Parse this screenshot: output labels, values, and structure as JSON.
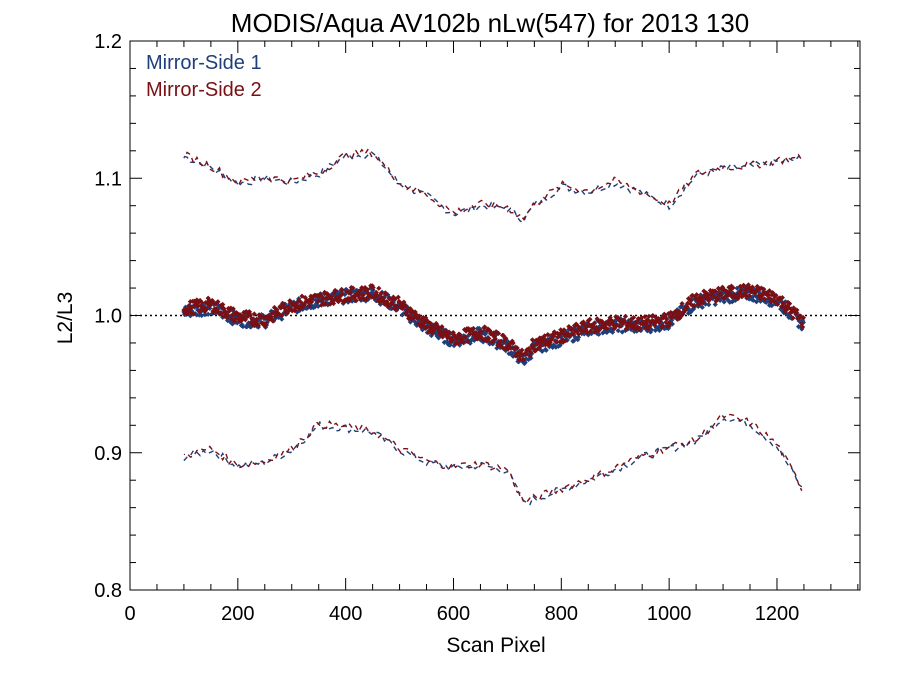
{
  "chart_data": {
    "type": "scatter",
    "title": "MODIS/Aqua AV102b nLw(547) for 2013 130",
    "xlabel": "Scan Pixel",
    "ylabel": "L2/L3",
    "xlim": [
      0,
      1354
    ],
    "ylim": [
      0.8,
      1.2
    ],
    "x_ticks": [
      0,
      200,
      400,
      600,
      800,
      1000,
      1200
    ],
    "x_tick_labels": [
      "0",
      "200",
      "400",
      "600",
      "800",
      "1000",
      "1200"
    ],
    "y_ticks": [
      0.8,
      0.9,
      1.0,
      1.1,
      1.2
    ],
    "y_tick_labels": [
      "0.8",
      "0.9",
      "1.0",
      "1.1",
      "1.2"
    ],
    "reference_line": 1.0,
    "legend_position": "top-left",
    "colors": {
      "ms1": "#1f3f7a",
      "ms2": "#7a0f14"
    },
    "x": [
      100,
      150,
      200,
      250,
      300,
      350,
      400,
      450,
      500,
      550,
      600,
      650,
      700,
      730,
      750,
      800,
      850,
      900,
      950,
      1000,
      1050,
      1100,
      1150,
      1200,
      1250
    ],
    "series": [
      {
        "name": "Mirror-Side 1",
        "color": "#1f3f7a",
        "mean": [
          1.003,
          1.006,
          0.997,
          0.996,
          1.006,
          1.011,
          1.014,
          1.016,
          1.006,
          0.991,
          0.982,
          0.986,
          0.978,
          0.967,
          0.977,
          0.983,
          0.99,
          0.993,
          0.992,
          0.995,
          1.01,
          1.014,
          1.016,
          1.011,
          0.993
        ],
        "upper": [
          1.116,
          1.108,
          1.096,
          1.1,
          1.097,
          1.103,
          1.116,
          1.118,
          1.096,
          1.087,
          1.074,
          1.08,
          1.078,
          1.07,
          1.08,
          1.094,
          1.09,
          1.097,
          1.089,
          1.08,
          1.102,
          1.107,
          1.108,
          1.112,
          1.114
        ],
        "lower": [
          0.897,
          0.902,
          0.89,
          0.893,
          0.902,
          0.92,
          0.918,
          0.915,
          0.902,
          0.893,
          0.889,
          0.891,
          0.887,
          0.863,
          0.866,
          0.873,
          0.88,
          0.888,
          0.897,
          0.903,
          0.908,
          0.926,
          0.921,
          0.905,
          0.871
        ]
      },
      {
        "name": "Mirror-Side 2",
        "color": "#7a0f14",
        "mean": [
          1.005,
          1.008,
          0.999,
          0.997,
          1.008,
          1.012,
          1.015,
          1.017,
          1.008,
          0.993,
          0.983,
          0.988,
          0.98,
          0.969,
          0.979,
          0.985,
          0.992,
          0.995,
          0.994,
          0.997,
          1.012,
          1.016,
          1.018,
          1.013,
          0.995
        ],
        "upper": [
          1.117,
          1.109,
          1.097,
          1.101,
          1.098,
          1.104,
          1.117,
          1.119,
          1.097,
          1.088,
          1.075,
          1.081,
          1.079,
          1.071,
          1.081,
          1.095,
          1.091,
          1.098,
          1.09,
          1.081,
          1.103,
          1.108,
          1.109,
          1.113,
          1.115
        ],
        "lower": [
          0.898,
          0.903,
          0.891,
          0.894,
          0.903,
          0.921,
          0.919,
          0.916,
          0.903,
          0.894,
          0.89,
          0.892,
          0.888,
          0.864,
          0.867,
          0.874,
          0.881,
          0.889,
          0.898,
          0.904,
          0.909,
          0.927,
          0.922,
          0.906,
          0.872
        ]
      }
    ]
  }
}
